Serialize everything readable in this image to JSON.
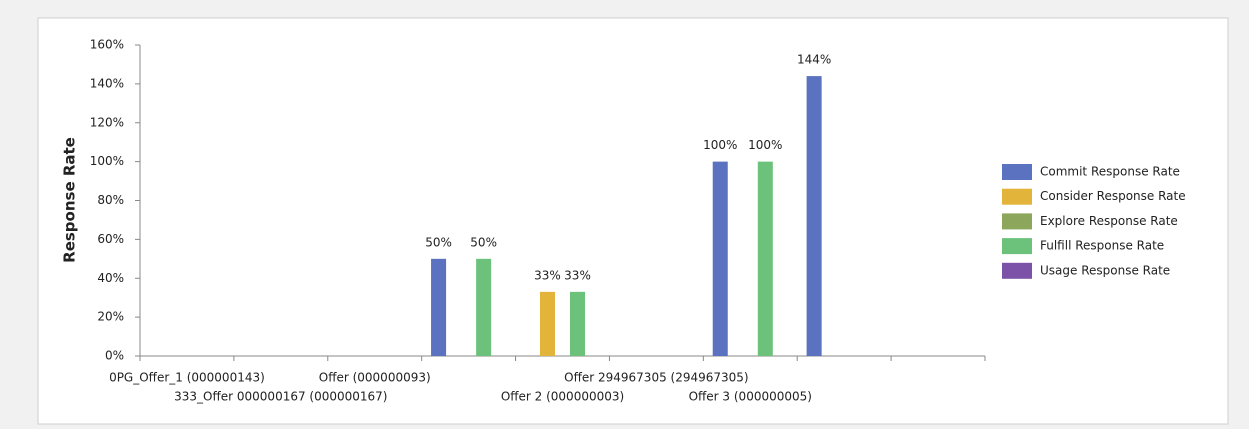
{
  "chart_data": {
    "type": "bar",
    "ylabel": "Response Rate",
    "categories": [
      "0PG_Offer_1  (000000143)",
      "333_Offer 000000167 (000000167)",
      "Offer  (000000093)",
      null,
      "Offer 2 (000000003)",
      "Offer 294967305 (294967305)",
      "Offer 3 (000000005)",
      null,
      null
    ],
    "series": [
      {
        "name": "Commit Response Rate",
        "color": "#5a72bf",
        "values": [
          null,
          null,
          null,
          50,
          null,
          null,
          100,
          144,
          null
        ],
        "value_labels": [
          null,
          null,
          null,
          "50%",
          null,
          null,
          "100%",
          "144%",
          null
        ]
      },
      {
        "name": "Consider Response Rate",
        "color": "#e2b43a",
        "values": [
          null,
          null,
          null,
          null,
          33,
          null,
          null,
          null,
          null
        ],
        "value_labels": [
          null,
          null,
          null,
          null,
          "33%",
          null,
          null,
          null,
          null
        ]
      },
      {
        "name": "Explore Response Rate",
        "color": "#8ca65c",
        "values": [
          null,
          null,
          null,
          null,
          null,
          null,
          null,
          null,
          null
        ]
      },
      {
        "name": "Fulfill Response Rate",
        "color": "#6cc27a",
        "values": [
          null,
          null,
          null,
          50,
          33,
          null,
          100,
          null,
          null
        ],
        "value_labels": [
          null,
          null,
          null,
          "50%",
          "33%",
          null,
          "100%",
          null,
          null
        ]
      },
      {
        "name": "Usage Response Rate",
        "color": "#7b52a8",
        "values": [
          null,
          null,
          null,
          null,
          null,
          null,
          null,
          null,
          null
        ]
      }
    ],
    "ylim": [
      0,
      160
    ],
    "yticks": [
      {
        "value": 0,
        "label": "0%"
      },
      {
        "value": 20,
        "label": "20%"
      },
      {
        "value": 40,
        "label": "40%"
      },
      {
        "value": 60,
        "label": "60%"
      },
      {
        "value": 80,
        "label": "80%"
      },
      {
        "value": 100,
        "label": "100%"
      },
      {
        "value": 120,
        "label": "120%"
      },
      {
        "value": 140,
        "label": "140%"
      },
      {
        "value": 160,
        "label": "160%"
      }
    ],
    "legend": "right"
  }
}
